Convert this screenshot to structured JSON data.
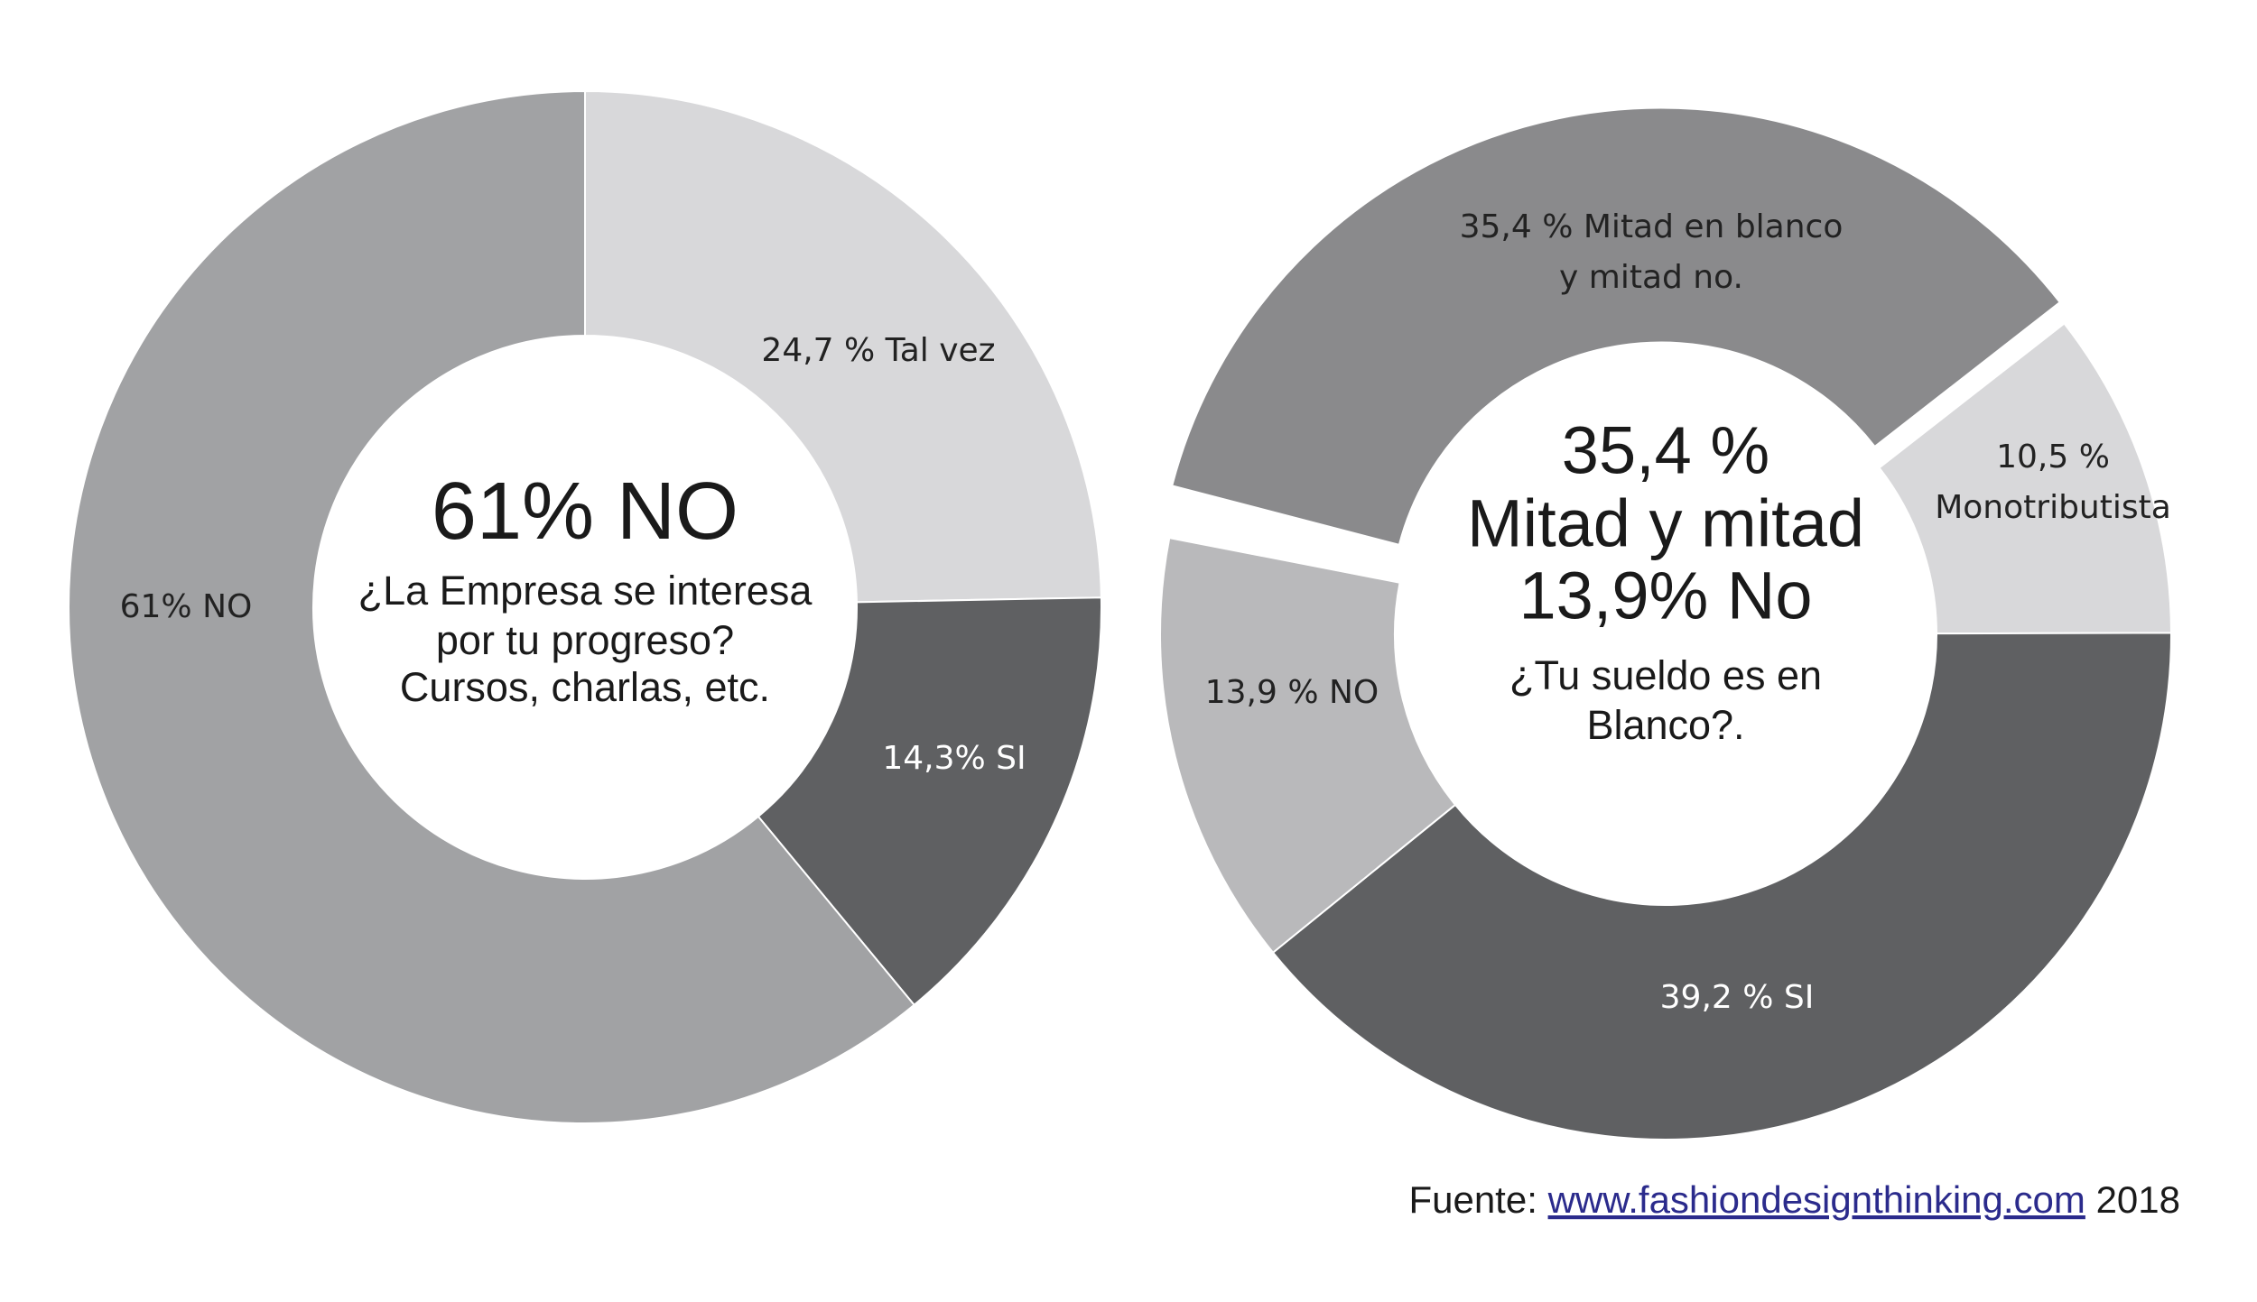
{
  "chart_data": [
    {
      "type": "donut",
      "center_title": [
        "61% NO"
      ],
      "question": [
        "¿La Empresa se interesa",
        "por tu progreso?",
        "Cursos, charlas, etc."
      ],
      "values": [
        24.7,
        14.3,
        61
      ],
      "value_labels": [
        "24,7 % Tal vez",
        "14,3% SI",
        "61% NO"
      ],
      "colors": [
        "#d8d8da",
        "#5f6062",
        "#a1a2a4"
      ]
    },
    {
      "type": "donut",
      "center_title": [
        "35,4 %",
        "Mitad y mitad",
        "13,9% No"
      ],
      "question": [
        "¿Tu sueldo es en",
        "Blanco?."
      ],
      "values": [
        35.4,
        10.5,
        39.2,
        13.9
      ],
      "value_labels": [
        "35,4 % Mitad en blanco\ny mitad no.",
        "10,5 %\nMonotributista",
        "39,2 % SI",
        "13,9 % NO"
      ],
      "colors": [
        "#8a8a8c",
        "#d8d8da",
        "#5f6062",
        "#b9b9bb"
      ]
    }
  ],
  "source": {
    "prefix": "Fuente:",
    "link": "www.fashiondesignthinking.com",
    "suffix": "2018"
  }
}
